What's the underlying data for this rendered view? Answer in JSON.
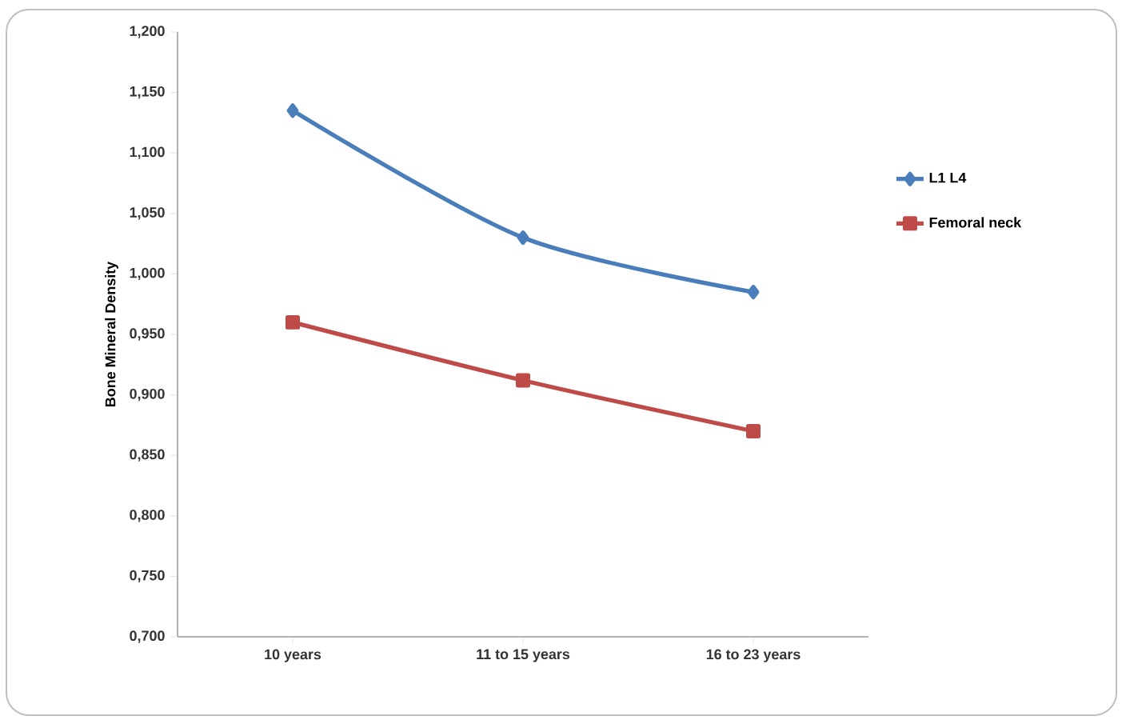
{
  "chart_data": {
    "type": "line",
    "ylabel": "Bone Mineral Density",
    "categories": [
      "10 years",
      "11 to 15 years",
      "16 to 23 years"
    ],
    "series": [
      {
        "name": "L1 L4",
        "color": "#4a7ebb",
        "marker": "diamond",
        "values": [
          1.135,
          1.03,
          0.985
        ]
      },
      {
        "name": "Femoral neck",
        "color": "#be4b48",
        "marker": "square",
        "values": [
          0.96,
          0.912,
          0.87
        ]
      }
    ],
    "ylim": [
      0.7,
      1.2
    ],
    "yticks": [
      {
        "value": 0.7,
        "label": "0,700"
      },
      {
        "value": 0.75,
        "label": "0,750"
      },
      {
        "value": 0.8,
        "label": "0,800"
      },
      {
        "value": 0.85,
        "label": "0,850"
      },
      {
        "value": 0.9,
        "label": "0,900"
      },
      {
        "value": 0.95,
        "label": "0,950"
      },
      {
        "value": 1.0,
        "label": "1,000"
      },
      {
        "value": 1.05,
        "label": "1,050"
      },
      {
        "value": 1.1,
        "label": "1,100"
      },
      {
        "value": 1.15,
        "label": "1,150"
      },
      {
        "value": 1.2,
        "label": "1,200"
      }
    ],
    "grid": false,
    "legend": "right",
    "line_style": "solid"
  }
}
